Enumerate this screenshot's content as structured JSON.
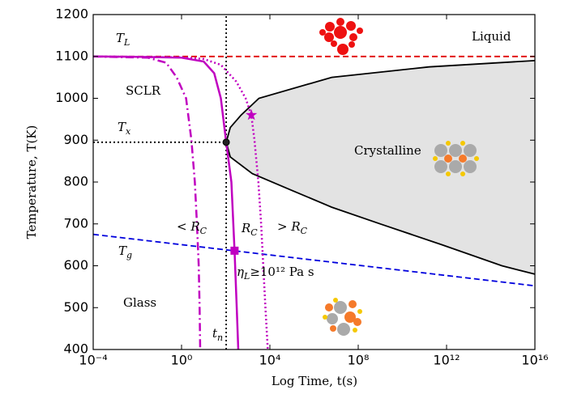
{
  "chart_data": {
    "type": "line",
    "xlabel": "Log Time, t(s)",
    "ylabel": "Temperature, T(K)",
    "xscale": "log",
    "xlim": [
      0.0001,
      1e+16
    ],
    "ylim": [
      400,
      1200
    ],
    "xticks": [
      {
        "value": 0.0001,
        "label": "10⁻⁴"
      },
      {
        "value": 1,
        "label": "10⁰"
      },
      {
        "value": 10000,
        "label": "10⁴"
      },
      {
        "value": 100000000,
        "label": "10⁸"
      },
      {
        "value": 1000000000000.0,
        "label": "10¹²"
      },
      {
        "value": 1e+16,
        "label": "10¹⁶"
      }
    ],
    "yticks": [
      400,
      500,
      600,
      700,
      800,
      900,
      1000,
      1100,
      1200
    ],
    "series": [
      {
        "color": "#000000",
        "style": "solid",
        "fill": "#e3e3e3",
        "x": [
          1e+16,
          160000000000.0,
          6300000,
          3200,
          500,
          160,
          105,
          160,
          1600,
          100000,
          6300000,
          1000000000,
          630000000000,
          320000000000000,
          1e+16
        ],
        "values": [
          1090,
          1075,
          1050,
          1000,
          960,
          930,
          895,
          860,
          820,
          780,
          740,
          700,
          650,
          600,
          580
        ]
      },
      {
        "color": "#e00000",
        "style": "dashed",
        "x": [
          0.0001,
          1e+16
        ],
        "values": [
          1100,
          1100
        ]
      },
      {
        "color": "#0000dd",
        "style": "dashed",
        "x": [
          0.0001,
          1e+16
        ],
        "values": [
          675,
          552
        ]
      },
      {
        "color": "#000000",
        "style": "dotted",
        "x": [
          0.0001,
          105
        ],
        "values": [
          895,
          895
        ]
      },
      {
        "color": "#000000",
        "style": "dotted",
        "x": [
          105,
          105
        ],
        "values": [
          400,
          1200
        ]
      },
      {
        "color": "#c000c0",
        "style": "solid",
        "x": [
          0.0001,
          0.01,
          1,
          10,
          30,
          60,
          105,
          180,
          251,
          316,
          372
        ],
        "values": [
          1100,
          1099,
          1097,
          1088,
          1060,
          1000,
          895,
          800,
          636,
          500,
          400
        ]
      },
      {
        "color": "#c000c0",
        "style": "dashdot",
        "x": [
          0.0001,
          0.03,
          0.2,
          0.6,
          1.6,
          2.8,
          4,
          5,
          6,
          6.6,
          7
        ],
        "values": [
          1100,
          1097,
          1085,
          1050,
          1000,
          900,
          800,
          700,
          600,
          500,
          400
        ]
      },
      {
        "color": "#c000c0",
        "style": "dotted",
        "x": [
          0.0001,
          1,
          10,
          60,
          300,
          800,
          1450,
          2000,
          3000,
          4000,
          5000,
          6300,
          8000
        ],
        "values": [
          1100,
          1098,
          1094,
          1080,
          1040,
          1000,
          960,
          900,
          800,
          700,
          600,
          500,
          400
        ]
      },
      {
        "color": "#c000c0",
        "marker": "star",
        "x": [
          1450
        ],
        "values": [
          960
        ]
      },
      {
        "color": "#c000c0",
        "marker": "square",
        "x": [
          251
        ],
        "values": [
          636
        ]
      },
      {
        "color": "#000000",
        "marker": "circle",
        "x": [
          105
        ],
        "values": [
          895
        ]
      }
    ],
    "annotations": [
      {
        "text": "T",
        "sub": "L"
      },
      {
        "text": "Liquid"
      },
      {
        "text": "SCLR"
      },
      {
        "text": "T",
        "sub": "x"
      },
      {
        "text": "Crystalline"
      },
      {
        "text": "< R",
        "sub": "C"
      },
      {
        "text": "R",
        "sub": "C"
      },
      {
        "text": "> R",
        "sub": "C"
      },
      {
        "text": "T",
        "sub": "g"
      },
      {
        "text": "η",
        "sub": "L",
        "after": "≥10¹² Pa s"
      },
      {
        "text": "Glass"
      },
      {
        "text": "t",
        "sub": "n"
      }
    ]
  }
}
